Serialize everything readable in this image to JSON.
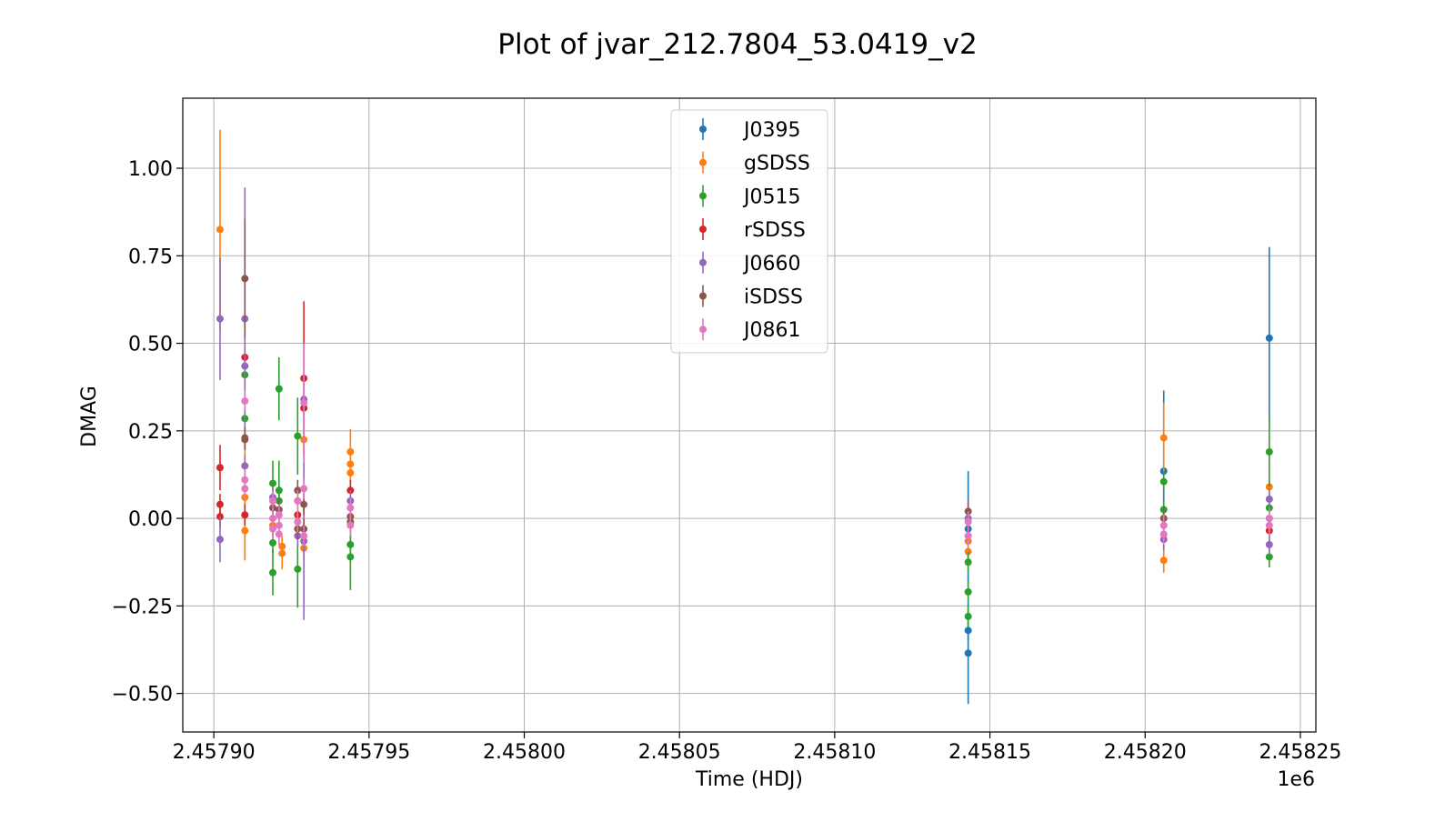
{
  "chart_data": {
    "type": "scatter",
    "title": "Plot of jvar_212.7804_53.0419_v2",
    "xlabel": "Time (HDJ)",
    "ylabel": "DMAG",
    "x_offset_label": "1e6",
    "xlim": [
      2457890.0,
      2458255.0
    ],
    "ylim": [
      -0.61,
      1.2
    ],
    "x_ticks": [
      2457900,
      2457950,
      2458000,
      2458050,
      2458100,
      2458150,
      2458200,
      2458250
    ],
    "x_tick_labels": [
      "2.45790",
      "2.45795",
      "2.45800",
      "2.45805",
      "2.45810",
      "2.45815",
      "2.45820",
      "2.45825"
    ],
    "y_ticks": [
      -0.5,
      -0.25,
      0.0,
      0.25,
      0.5,
      0.75,
      1.0
    ],
    "y_tick_labels": [
      "−0.50",
      "−0.25",
      "0.00",
      "0.25",
      "0.50",
      "0.75",
      "1.00"
    ],
    "grid": true,
    "legend_position": "top-center",
    "series": [
      {
        "name": "J0395",
        "color": "#1f77b4",
        "points": [
          {
            "x": 2458143,
            "y": -0.385,
            "err": 0.145
          },
          {
            "x": 2458143,
            "y": -0.32,
            "err": 0.03
          },
          {
            "x": 2458143,
            "y": -0.03,
            "err": 0.165
          },
          {
            "x": 2458206,
            "y": 0.135,
            "err": 0.23
          },
          {
            "x": 2458240,
            "y": 0.515,
            "err": 0.26
          },
          {
            "x": 2458240,
            "y": 0.0,
            "err": 0.03
          }
        ]
      },
      {
        "name": "gSDSS",
        "color": "#ff7f0e",
        "points": [
          {
            "x": 2457902,
            "y": 0.825,
            "err": 0.285
          },
          {
            "x": 2457910,
            "y": 0.06,
            "err": 0.18
          },
          {
            "x": 2457910,
            "y": -0.035,
            "err": 0.085
          },
          {
            "x": 2457919,
            "y": -0.02,
            "err": 0.03
          },
          {
            "x": 2457922,
            "y": -0.08,
            "err": 0.03
          },
          {
            "x": 2457922,
            "y": -0.1,
            "err": 0.045
          },
          {
            "x": 2457927,
            "y": 0.05,
            "err": 0.03
          },
          {
            "x": 2457929,
            "y": 0.225,
            "err": 0.06
          },
          {
            "x": 2457929,
            "y": -0.085,
            "err": 0.03
          },
          {
            "x": 2457944,
            "y": 0.19,
            "err": 0.065
          },
          {
            "x": 2457944,
            "y": 0.155,
            "err": 0.03
          },
          {
            "x": 2457944,
            "y": 0.13,
            "err": 0.03
          },
          {
            "x": 2458143,
            "y": -0.065,
            "err": 0.03
          },
          {
            "x": 2458143,
            "y": -0.095,
            "err": 0.03
          },
          {
            "x": 2458206,
            "y": 0.23,
            "err": 0.1
          },
          {
            "x": 2458206,
            "y": -0.12,
            "err": 0.035
          },
          {
            "x": 2458240,
            "y": 0.09,
            "err": 0.03
          }
        ]
      },
      {
        "name": "J0515",
        "color": "#2ca02c",
        "points": [
          {
            "x": 2457910,
            "y": 0.41,
            "err": 0.03
          },
          {
            "x": 2457910,
            "y": 0.285,
            "err": 0.03
          },
          {
            "x": 2457919,
            "y": 0.1,
            "err": 0.065
          },
          {
            "x": 2457919,
            "y": -0.07,
            "err": 0.03
          },
          {
            "x": 2457919,
            "y": -0.155,
            "err": 0.065
          },
          {
            "x": 2457921,
            "y": 0.37,
            "err": 0.09
          },
          {
            "x": 2457921,
            "y": 0.08,
            "err": 0.085
          },
          {
            "x": 2457921,
            "y": 0.05,
            "err": 0.03
          },
          {
            "x": 2457927,
            "y": 0.235,
            "err": 0.11
          },
          {
            "x": 2457927,
            "y": -0.145,
            "err": 0.11
          },
          {
            "x": 2457944,
            "y": -0.075,
            "err": 0.03
          },
          {
            "x": 2457944,
            "y": -0.11,
            "err": 0.095
          },
          {
            "x": 2458143,
            "y": -0.125,
            "err": 0.03
          },
          {
            "x": 2458143,
            "y": -0.21,
            "err": 0.03
          },
          {
            "x": 2458143,
            "y": -0.28,
            "err": 0.03
          },
          {
            "x": 2458206,
            "y": 0.105,
            "err": 0.03
          },
          {
            "x": 2458206,
            "y": 0.025,
            "err": 0.03
          },
          {
            "x": 2458240,
            "y": 0.19,
            "err": 0.1
          },
          {
            "x": 2458240,
            "y": 0.03,
            "err": 0.03
          },
          {
            "x": 2458240,
            "y": -0.11,
            "err": 0.03
          }
        ]
      },
      {
        "name": "rSDSS",
        "color": "#d62728",
        "points": [
          {
            "x": 2457902,
            "y": 0.145,
            "err": 0.065
          },
          {
            "x": 2457902,
            "y": 0.04,
            "err": 0.03
          },
          {
            "x": 2457902,
            "y": 0.005,
            "err": 0.03
          },
          {
            "x": 2457910,
            "y": 0.46,
            "err": 0.03
          },
          {
            "x": 2457910,
            "y": 0.01,
            "err": 0.03
          },
          {
            "x": 2457927,
            "y": 0.01,
            "err": 0.03
          },
          {
            "x": 2457929,
            "y": 0.4,
            "err": 0.22
          },
          {
            "x": 2457929,
            "y": 0.315,
            "err": 0.03
          },
          {
            "x": 2457944,
            "y": 0.08,
            "err": 0.03
          },
          {
            "x": 2458240,
            "y": -0.035,
            "err": 0.03
          }
        ]
      },
      {
        "name": "J0660",
        "color": "#9467bd",
        "points": [
          {
            "x": 2457902,
            "y": 0.57,
            "err": 0.175
          },
          {
            "x": 2457902,
            "y": -0.06,
            "err": 0.065
          },
          {
            "x": 2457910,
            "y": 0.57,
            "err": 0.375
          },
          {
            "x": 2457910,
            "y": 0.435,
            "err": 0.03
          },
          {
            "x": 2457910,
            "y": 0.15,
            "err": 0.03
          },
          {
            "x": 2457919,
            "y": 0.06,
            "err": 0.03
          },
          {
            "x": 2457927,
            "y": -0.05,
            "err": 0.03
          },
          {
            "x": 2457929,
            "y": 0.34,
            "err": 0.03
          },
          {
            "x": 2457929,
            "y": -0.065,
            "err": 0.225
          },
          {
            "x": 2457944,
            "y": 0.05,
            "err": 0.03
          },
          {
            "x": 2458143,
            "y": 0.0,
            "err": 0.03
          },
          {
            "x": 2458206,
            "y": -0.06,
            "err": 0.03
          },
          {
            "x": 2458240,
            "y": 0.055,
            "err": 0.03
          },
          {
            "x": 2458240,
            "y": -0.075,
            "err": 0.03
          }
        ]
      },
      {
        "name": "iSDSS",
        "color": "#8c564b",
        "points": [
          {
            "x": 2457910,
            "y": 0.685,
            "err": 0.17
          },
          {
            "x": 2457910,
            "y": 0.23,
            "err": 0.03
          },
          {
            "x": 2457910,
            "y": 0.225,
            "err": 0.03
          },
          {
            "x": 2457919,
            "y": 0.03,
            "err": 0.03
          },
          {
            "x": 2457921,
            "y": 0.025,
            "err": 0.03
          },
          {
            "x": 2457927,
            "y": 0.08,
            "err": 0.03
          },
          {
            "x": 2457927,
            "y": -0.03,
            "err": 0.03
          },
          {
            "x": 2457929,
            "y": 0.04,
            "err": 0.03
          },
          {
            "x": 2457929,
            "y": -0.03,
            "err": 0.03
          },
          {
            "x": 2457944,
            "y": 0.005,
            "err": 0.03
          },
          {
            "x": 2457944,
            "y": -0.01,
            "err": 0.03
          },
          {
            "x": 2458143,
            "y": 0.02,
            "err": 0.03
          },
          {
            "x": 2458206,
            "y": 0.0,
            "err": 0.03
          }
        ]
      },
      {
        "name": "J0861",
        "color": "#e377c2",
        "points": [
          {
            "x": 2457910,
            "y": 0.335,
            "err": 0.03
          },
          {
            "x": 2457910,
            "y": 0.11,
            "err": 0.03
          },
          {
            "x": 2457910,
            "y": 0.085,
            "err": 0.03
          },
          {
            "x": 2457919,
            "y": 0.05,
            "err": 0.03
          },
          {
            "x": 2457919,
            "y": 0.0,
            "err": 0.03
          },
          {
            "x": 2457919,
            "y": -0.03,
            "err": 0.03
          },
          {
            "x": 2457921,
            "y": 0.01,
            "err": 0.03
          },
          {
            "x": 2457921,
            "y": -0.02,
            "err": 0.03
          },
          {
            "x": 2457921,
            "y": -0.045,
            "err": 0.03
          },
          {
            "x": 2457927,
            "y": 0.05,
            "err": 0.03
          },
          {
            "x": 2457927,
            "y": -0.01,
            "err": 0.03
          },
          {
            "x": 2457929,
            "y": 0.33,
            "err": 0.17
          },
          {
            "x": 2457929,
            "y": 0.085,
            "err": 0.03
          },
          {
            "x": 2457929,
            "y": -0.05,
            "err": 0.03
          },
          {
            "x": 2457944,
            "y": 0.03,
            "err": 0.03
          },
          {
            "x": 2457944,
            "y": -0.02,
            "err": 0.03
          },
          {
            "x": 2458143,
            "y": -0.01,
            "err": 0.03
          },
          {
            "x": 2458143,
            "y": -0.05,
            "err": 0.03
          },
          {
            "x": 2458206,
            "y": -0.02,
            "err": 0.03
          },
          {
            "x": 2458206,
            "y": -0.045,
            "err": 0.03
          },
          {
            "x": 2458240,
            "y": 0.0,
            "err": 0.03
          },
          {
            "x": 2458240,
            "y": -0.02,
            "err": 0.03
          }
        ]
      }
    ]
  }
}
